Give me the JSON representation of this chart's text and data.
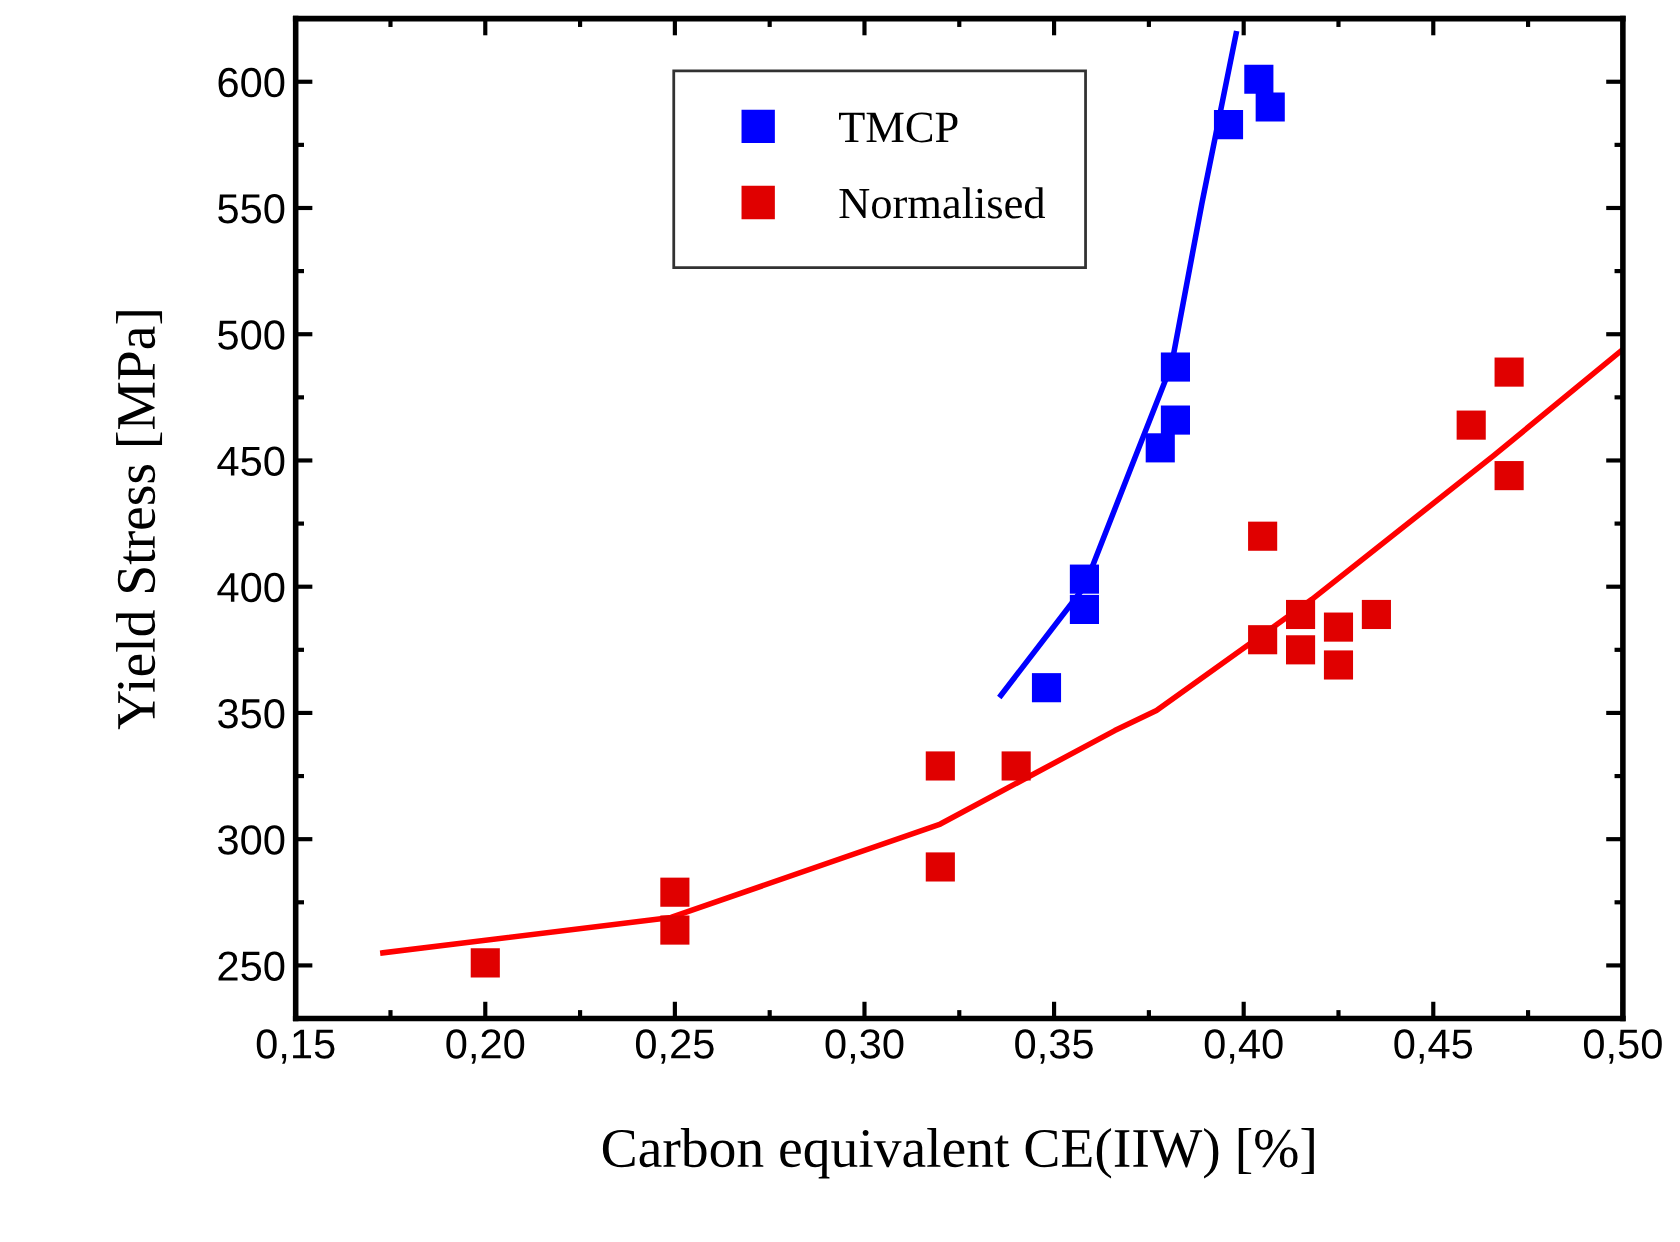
{
  "chart_data": {
    "type": "scatter",
    "xlabel": "Carbon equivalent CE(IIW) [%]",
    "ylabel": "Yield Stress [MPa]",
    "xlim": [
      0.15,
      0.5
    ],
    "ylim": [
      229,
      625
    ],
    "xticks": [
      {
        "value": 0.15,
        "label": "0,15"
      },
      {
        "value": 0.2,
        "label": "0,20"
      },
      {
        "value": 0.25,
        "label": "0,25"
      },
      {
        "value": 0.3,
        "label": "0,30"
      },
      {
        "value": 0.35,
        "label": "0,35"
      },
      {
        "value": 0.4,
        "label": "0,40"
      },
      {
        "value": 0.45,
        "label": "0,45"
      },
      {
        "value": 0.5,
        "label": "0,50"
      }
    ],
    "yticks": [
      250,
      300,
      350,
      400,
      450,
      500,
      550,
      600
    ],
    "marker": "square",
    "grid": false,
    "legend": "top",
    "series": [
      {
        "name": "TMCP",
        "color": "#0000ff",
        "x": [
          0.348,
          0.358,
          0.358,
          0.378,
          0.382,
          0.382,
          0.396,
          0.404,
          0.407
        ],
        "values": [
          360,
          403,
          391,
          455,
          466,
          487,
          583,
          601,
          590
        ]
      },
      {
        "name": "Normalised",
        "color": "#e00000",
        "x": [
          0.2,
          0.25,
          0.25,
          0.32,
          0.32,
          0.34,
          0.405,
          0.405,
          0.415,
          0.415,
          0.425,
          0.425,
          0.435,
          0.46,
          0.47,
          0.47
        ],
        "values": [
          251,
          279,
          264,
          329,
          289,
          329,
          420,
          379,
          389,
          375,
          384,
          369,
          389,
          464,
          485,
          444
        ]
      },
      {
        "type": "line",
        "marker": "none",
        "color": "#0000ff",
        "x": [
          0.336,
          0.358,
          0.37,
          0.381,
          0.389,
          0.398
        ],
        "values": [
          357,
          400,
          446,
          488,
          552,
          619
        ]
      },
      {
        "type": "line",
        "marker": "none",
        "color": "#ff0000",
        "x": [
          0.173,
          0.249,
          0.32,
          0.366,
          0.377,
          0.418,
          0.466,
          0.5
        ],
        "values": [
          255,
          269,
          306,
          343,
          351,
          395,
          452,
          494
        ]
      }
    ]
  }
}
